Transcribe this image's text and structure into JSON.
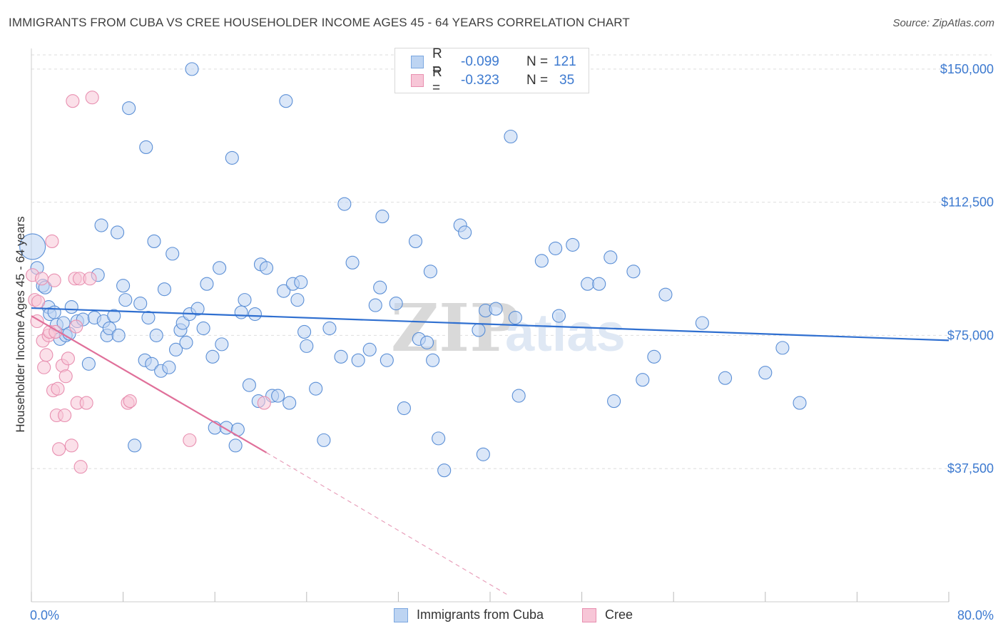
{
  "header": {
    "title": "IMMIGRANTS FROM CUBA VS CREE HOUSEHOLDER INCOME AGES 45 - 64 YEARS CORRELATION CHART",
    "source": "Source: ZipAtlas.com"
  },
  "watermark": {
    "part1": "ZIP",
    "part2": "atlas"
  },
  "legend": [
    {
      "r_label": "R =",
      "r_value": "-0.099",
      "n_label": "N =",
      "n_value": "121",
      "color": "#7ba7e0",
      "fill": "#bdd4f2"
    },
    {
      "r_label": "R =",
      "r_value": "-0.323",
      "n_label": "N =",
      "n_value": "35",
      "color": "#e88fb0",
      "fill": "#f7c6d7"
    }
  ],
  "chart_data": {
    "type": "scatter",
    "title": "IMMIGRANTS FROM CUBA VS CREE HOUSEHOLDER INCOME AGES 45 - 64 YEARS CORRELATION CHART",
    "xlabel": "",
    "ylabel": "Householder Income Ages 45 - 64 years",
    "xlim": [
      0,
      80
    ],
    "ylim": [
      0,
      157000
    ],
    "x_tick_labels": [
      "0.0%",
      "80.0%"
    ],
    "y_ticks": [
      37500,
      75000,
      112500,
      150000
    ],
    "y_tick_labels": [
      "$37,500",
      "$75,000",
      "$112,500",
      "$150,000"
    ],
    "grid": "horizontal dashed",
    "legend_position": "bottom",
    "series": [
      {
        "name": "Immigrants from Cuba",
        "color": "#5b8fd6",
        "fill": "#bdd4f2",
        "trend": {
          "x": [
            0,
            80
          ],
          "y": [
            82700,
            73600
          ]
        },
        "points": [
          [
            0.1,
            100000
          ],
          [
            0.5,
            94000
          ],
          [
            1.0,
            89000
          ],
          [
            1.2,
            88500
          ],
          [
            1.5,
            83000
          ],
          [
            1.6,
            81000
          ],
          [
            2.0,
            81500
          ],
          [
            2.2,
            78000
          ],
          [
            2.5,
            74000
          ],
          [
            2.8,
            78500
          ],
          [
            3.0,
            75000
          ],
          [
            3.3,
            75500
          ],
          [
            3.5,
            83000
          ],
          [
            4.0,
            79000
          ],
          [
            4.5,
            79500
          ],
          [
            5.0,
            67000
          ],
          [
            5.5,
            80000
          ],
          [
            5.8,
            92000
          ],
          [
            6.1,
            106000
          ],
          [
            6.3,
            79000
          ],
          [
            6.6,
            75000
          ],
          [
            6.8,
            77000
          ],
          [
            7.2,
            80500
          ],
          [
            7.5,
            104000
          ],
          [
            7.6,
            75000
          ],
          [
            8.0,
            89000
          ],
          [
            8.2,
            85000
          ],
          [
            8.5,
            139000
          ],
          [
            9.0,
            44000
          ],
          [
            9.5,
            84000
          ],
          [
            9.9,
            68000
          ],
          [
            10.0,
            128000
          ],
          [
            10.2,
            80000
          ],
          [
            10.5,
            67000
          ],
          [
            10.7,
            101500
          ],
          [
            10.9,
            75000
          ],
          [
            11.3,
            65000
          ],
          [
            11.6,
            88000
          ],
          [
            12.0,
            66000
          ],
          [
            12.3,
            98000
          ],
          [
            12.6,
            71000
          ],
          [
            13.0,
            76500
          ],
          [
            13.2,
            78500
          ],
          [
            13.5,
            73000
          ],
          [
            13.8,
            81000
          ],
          [
            14.0,
            150000
          ],
          [
            14.5,
            82500
          ],
          [
            15.0,
            77000
          ],
          [
            15.3,
            89500
          ],
          [
            15.8,
            69000
          ],
          [
            16.0,
            49000
          ],
          [
            16.4,
            94000
          ],
          [
            16.6,
            72500
          ],
          [
            17.0,
            49000
          ],
          [
            17.5,
            125000
          ],
          [
            17.8,
            44000
          ],
          [
            18.0,
            48500
          ],
          [
            18.3,
            81500
          ],
          [
            18.6,
            85000
          ],
          [
            19.0,
            61000
          ],
          [
            19.5,
            81000
          ],
          [
            19.8,
            56500
          ],
          [
            20.0,
            95000
          ],
          [
            20.5,
            94000
          ],
          [
            21.0,
            58000
          ],
          [
            21.5,
            58000
          ],
          [
            22.0,
            87500
          ],
          [
            22.2,
            141000
          ],
          [
            22.5,
            56000
          ],
          [
            22.8,
            89500
          ],
          [
            23.2,
            85000
          ],
          [
            23.5,
            90000
          ],
          [
            23.8,
            76000
          ],
          [
            24.0,
            72000
          ],
          [
            24.8,
            60000
          ],
          [
            25.5,
            45500
          ],
          [
            26.0,
            77000
          ],
          [
            27.0,
            69000
          ],
          [
            27.3,
            112000
          ],
          [
            28.0,
            95500
          ],
          [
            28.5,
            68000
          ],
          [
            29.5,
            71000
          ],
          [
            30.0,
            83500
          ],
          [
            30.4,
            88500
          ],
          [
            30.6,
            108500
          ],
          [
            31.0,
            68000
          ],
          [
            31.8,
            84000
          ],
          [
            32.5,
            54500
          ],
          [
            33.5,
            101500
          ],
          [
            33.8,
            74000
          ],
          [
            34.5,
            73000
          ],
          [
            34.8,
            93000
          ],
          [
            35.0,
            68000
          ],
          [
            35.5,
            46000
          ],
          [
            36.0,
            37000
          ],
          [
            37.4,
            106000
          ],
          [
            37.8,
            104000
          ],
          [
            39.0,
            76500
          ],
          [
            39.4,
            41500
          ],
          [
            39.6,
            82000
          ],
          [
            40.5,
            82500
          ],
          [
            41.8,
            131000
          ],
          [
            42.2,
            80000
          ],
          [
            42.5,
            58000
          ],
          [
            44.5,
            96000
          ],
          [
            45.7,
            99500
          ],
          [
            46.0,
            80500
          ],
          [
            47.2,
            100500
          ],
          [
            48.5,
            89500
          ],
          [
            49.5,
            89500
          ],
          [
            50.5,
            97000
          ],
          [
            50.8,
            56500
          ],
          [
            52.5,
            93000
          ],
          [
            53.3,
            62500
          ],
          [
            54.3,
            69000
          ],
          [
            55.3,
            86500
          ],
          [
            58.5,
            78500
          ],
          [
            60.5,
            63000
          ],
          [
            64.0,
            64500
          ],
          [
            65.5,
            71500
          ],
          [
            67.0,
            56000
          ]
        ]
      },
      {
        "name": "Cree",
        "color": "#e88fb0",
        "fill": "#f7c6d7",
        "trend": {
          "x": [
            0,
            20.5
          ],
          "y": [
            80500,
            42000
          ],
          "dashed_extension": {
            "x": [
              20.5,
              41.5
            ],
            "y": [
              42000,
              2000
            ]
          }
        },
        "points": [
          [
            0.1,
            92000
          ],
          [
            0.3,
            85000
          ],
          [
            0.5,
            79000
          ],
          [
            0.6,
            84500
          ],
          [
            0.9,
            91000
          ],
          [
            1.0,
            73500
          ],
          [
            1.1,
            66000
          ],
          [
            1.3,
            69500
          ],
          [
            1.5,
            75000
          ],
          [
            1.6,
            76000
          ],
          [
            1.8,
            101500
          ],
          [
            1.9,
            59500
          ],
          [
            2.0,
            90500
          ],
          [
            2.1,
            76000
          ],
          [
            2.2,
            52500
          ],
          [
            2.3,
            60000
          ],
          [
            2.4,
            43000
          ],
          [
            2.7,
            66500
          ],
          [
            2.9,
            52500
          ],
          [
            3.0,
            63500
          ],
          [
            3.2,
            68500
          ],
          [
            3.5,
            44000
          ],
          [
            3.6,
            141000
          ],
          [
            3.8,
            91000
          ],
          [
            3.9,
            77500
          ],
          [
            4.0,
            56000
          ],
          [
            4.2,
            91000
          ],
          [
            4.3,
            38000
          ],
          [
            4.8,
            56000
          ],
          [
            5.1,
            91000
          ],
          [
            5.3,
            142000
          ],
          [
            8.4,
            56000
          ],
          [
            8.6,
            56500
          ],
          [
            13.8,
            45500
          ],
          [
            20.3,
            56000
          ]
        ]
      }
    ]
  },
  "bottom_legend": [
    {
      "label": "Immigrants from Cuba",
      "color": "#7ba7e0",
      "fill": "#bdd4f2"
    },
    {
      "label": "Cree",
      "color": "#e88fb0",
      "fill": "#f7c6d7"
    }
  ]
}
